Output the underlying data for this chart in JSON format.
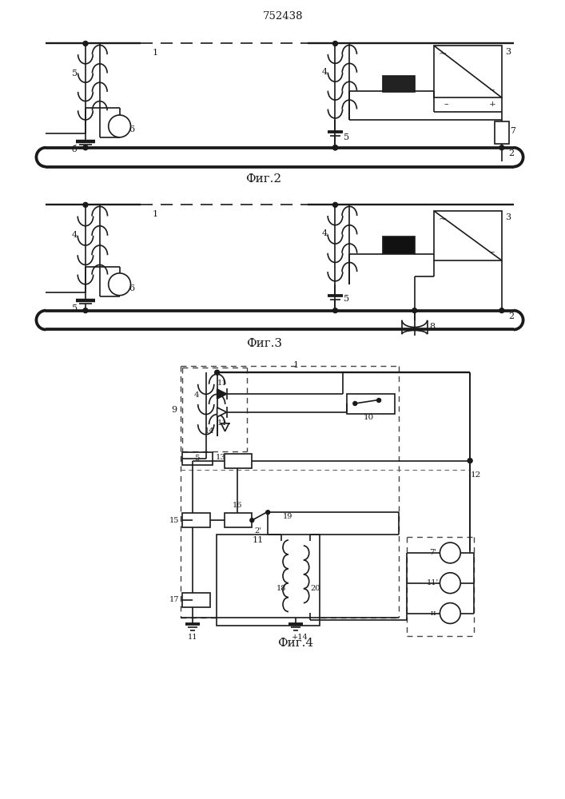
{
  "title": "752438",
  "fig2_label": "Фиг.2",
  "fig3_label": "Фиг.3",
  "fig4_label": "Фиг.4",
  "bg_color": "#ffffff",
  "lc": "#1a1a1a",
  "lw": 1.2
}
